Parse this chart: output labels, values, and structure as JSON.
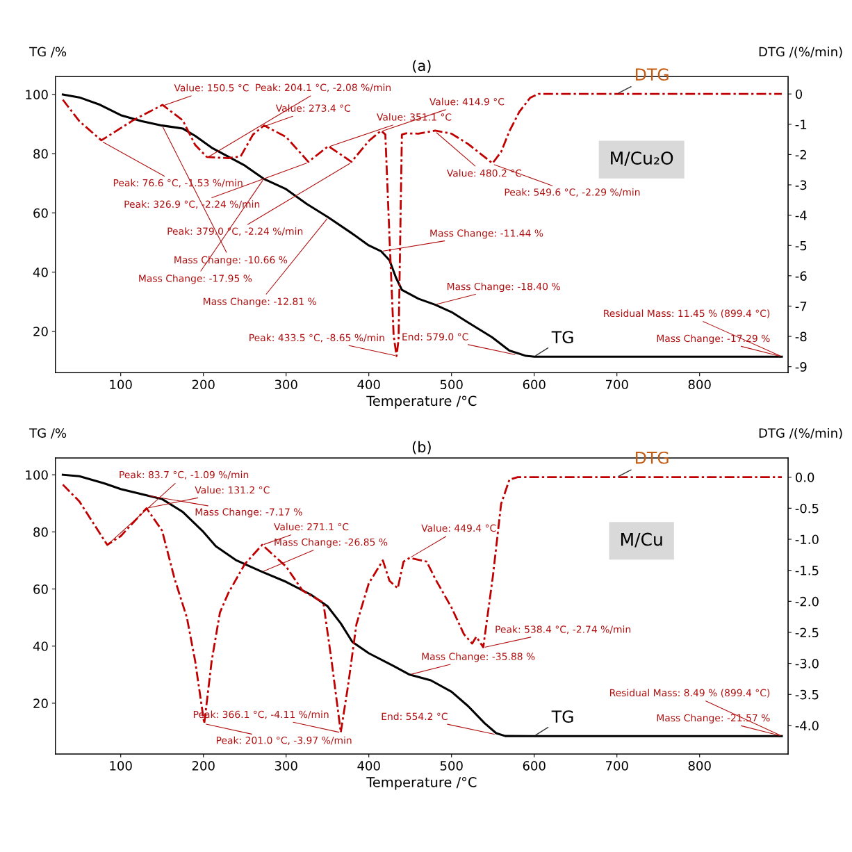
{
  "chart_data": [
    {
      "type": "line",
      "title": "(a)",
      "xlabel": "Temperature /°C",
      "ylabel": "TG /%",
      "y2label": "DTG /(%/min)",
      "xlim": [
        21,
        907
      ],
      "xticks": [
        100,
        200,
        300,
        400,
        500,
        600,
        700,
        800
      ],
      "ylim": [
        6,
        106
      ],
      "yticks": [
        20,
        40,
        60,
        80,
        100
      ],
      "y2lim": [
        -9.2,
        0.57
      ],
      "y2ticks": [
        0,
        -1,
        -2,
        -3,
        -4,
        -5,
        -6,
        -7,
        -8,
        -9
      ],
      "line_style": "solid",
      "grid": false,
      "legend": false,
      "series": [
        {
          "name": "TG",
          "color": "#000000",
          "x": [
            30,
            50,
            75,
            100,
            125,
            150,
            175,
            190,
            210,
            230,
            250,
            273,
            300,
            325,
            351,
            380,
            400,
            415,
            425,
            433,
            440,
            460,
            480,
            500,
            520,
            549,
            570,
            590,
            600,
            700,
            899.4
          ],
          "values": [
            100,
            99,
            96.5,
            93,
            91,
            89.5,
            88.5,
            86,
            82,
            79,
            76,
            71.5,
            68,
            63,
            58.5,
            53,
            49,
            47,
            44,
            38,
            34,
            31,
            29,
            26.5,
            23,
            18,
            13.5,
            11.7,
            11.45,
            11.45,
            11.45
          ]
        },
        {
          "name": "DTG",
          "color": "#c00000",
          "axis": "y2",
          "line_style": "dashdot",
          "x": [
            30,
            50,
            76.6,
            115,
            150.5,
            175,
            190,
            204.1,
            230,
            245,
            260,
            273.4,
            300,
            326.9,
            351.1,
            379,
            400,
            414.9,
            420,
            425,
            430,
            433.5,
            436,
            438,
            440,
            445,
            460,
            480.2,
            500,
            520,
            540,
            549.6,
            560,
            570,
            582,
            595,
            605,
            700,
            800,
            899.4
          ],
          "values": [
            -0.19,
            -0.9,
            -1.53,
            -0.87,
            -0.36,
            -0.87,
            -1.68,
            -2.08,
            -2.12,
            -2.06,
            -1.34,
            -1.04,
            -1.42,
            -2.24,
            -1.72,
            -2.24,
            -1.55,
            -1.21,
            -1.34,
            -4.73,
            -7.96,
            -8.65,
            -8.1,
            -4.73,
            -1.34,
            -1.3,
            -1.31,
            -1.21,
            -1.31,
            -1.65,
            -2.08,
            -2.29,
            -1.91,
            -1.23,
            -0.59,
            -0.13,
            0,
            0,
            0,
            0
          ]
        }
      ],
      "annotations": [
        {
          "text": "Value: 150.5 °C",
          "x": 150.5,
          "y": 96.1
        },
        {
          "text": "Peak: 76.6 °C, -1.53 %/min",
          "x": 76.6,
          "y": 84.2
        },
        {
          "text": "Value: 273.4 °C",
          "x": 273.4,
          "y": 89.2
        },
        {
          "text": "Peak: 204.1 °C, -2.08 %/min",
          "x": 204.1,
          "y": 78.6
        },
        {
          "text": "Value: 351.1 °C",
          "x": 351.1,
          "y": 82.3
        },
        {
          "text": "Peak: 326.9 °C, -2.24 %/min",
          "x": 326.9,
          "y": 77.0
        },
        {
          "text": "Value: 414.9 °C",
          "x": 414.9,
          "y": 87.5
        },
        {
          "text": "Peak: 379.0 °C, -2.24 %/min",
          "x": 379.0,
          "y": 77.0
        },
        {
          "text": "Value: 480.2 °C",
          "x": 480.2,
          "y": 87.5
        },
        {
          "text": "Peak: 433.5 °C, -8.65 %/min",
          "x": 433.5,
          "y": 11.7
        },
        {
          "text": "Mass Change: -10.66 %",
          "x": 150,
          "y": 89.5
        },
        {
          "text": "Peak: 549.6 °C, -2.29 %/min",
          "x": 549.6,
          "y": 76.5
        },
        {
          "text": "Mass Change: -17.95 %",
          "x": 273,
          "y": 71.5
        },
        {
          "text": "Mass Change: -12.81 %",
          "x": 351,
          "y": 58.5
        },
        {
          "text": "Mass Change: -11.44 %",
          "x": 415,
          "y": 47
        },
        {
          "text": "Mass Change: -18.40 %",
          "x": 480,
          "y": 29
        },
        {
          "text": "Mass Change: -17.29 %",
          "x": 899.4,
          "y": 11.45
        },
        {
          "text": "End: 579.0 °C",
          "x": 579,
          "y": 12
        },
        {
          "text": "Residual Mass: 11.45 % (899.4 °C)",
          "x": 899.4,
          "y": 11.45
        },
        "M/Cu₂O"
      ]
    },
    {
      "type": "line",
      "title": "(b)",
      "xlabel": "Temperature /°C",
      "ylabel": "TG /%",
      "y2label": "DTG /(%/min)",
      "xlim": [
        21,
        907
      ],
      "xticks": [
        100,
        200,
        300,
        400,
        500,
        600,
        700,
        800
      ],
      "ylim": [
        2.2,
        105.9
      ],
      "yticks": [
        20,
        40,
        60,
        80,
        100
      ],
      "y2lim": [
        -4.46,
        0.31
      ],
      "y2ticks": [
        {
          "value": 0,
          "label": "0.0"
        },
        -0.5,
        {
          "value": -1,
          "label": "-1.0"
        },
        -1.5,
        {
          "value": -2,
          "label": "-2.0"
        },
        -2.5,
        {
          "value": -3,
          "label": "-3.0"
        },
        -3.5,
        {
          "value": -4,
          "label": "-4.0"
        }
      ],
      "line_style": "solid",
      "grid": false,
      "legend": false,
      "series": [
        {
          "name": "TG",
          "color": "#000000",
          "x": [
            30,
            50,
            80,
            100,
            131.2,
            150,
            175,
            200,
            215,
            240,
            271.1,
            300,
            330,
            350,
            366,
            380,
            400,
            430,
            449.4,
            475,
            500,
            520,
            540,
            554,
            565,
            600,
            899.4
          ],
          "values": [
            100,
            99.5,
            97,
            95,
            92.8,
            91.5,
            87,
            80,
            75,
            70,
            66,
            62.5,
            58,
            54,
            48,
            41.5,
            37.5,
            33,
            30,
            28,
            24,
            19,
            13,
            9.5,
            8.5,
            8.49,
            8.49
          ]
        },
        {
          "name": "DTG",
          "color": "#c00000",
          "axis": "y2",
          "line_style": "dashdot",
          "x": [
            30,
            50,
            83.7,
            100,
            131.2,
            150,
            165,
            180,
            190,
            201.0,
            210,
            220,
            230,
            250,
            271.1,
            300,
            320,
            345,
            355,
            366.1,
            375,
            385,
            400,
            417,
            425,
            435,
            442,
            449.4,
            470,
            480,
            500,
            515,
            525,
            530,
            538.4,
            550,
            560,
            570,
            580,
            700,
            800,
            899.4
          ],
          "values": [
            -0.12,
            -0.39,
            -1.09,
            -0.95,
            -0.5,
            -0.86,
            -1.63,
            -2.26,
            -2.96,
            -3.97,
            -2.96,
            -2.18,
            -1.87,
            -1.4,
            -1.09,
            -1.44,
            -1.83,
            -2.02,
            -2.96,
            -4.11,
            -3.35,
            -2.37,
            -1.71,
            -1.34,
            -1.67,
            -1.79,
            -1.36,
            -1.3,
            -1.36,
            -1.63,
            -2.1,
            -2.53,
            -2.68,
            -2.57,
            -2.74,
            -1.6,
            -0.43,
            -0.04,
            0,
            0,
            0,
            0
          ]
        }
      ],
      "annotations": [
        {
          "text": "Value: 131.2 °C",
          "x": 131.2,
          "y": 88.3
        },
        {
          "text": "Peak: 83.7 °C, -1.09 %/min",
          "x": 83.7,
          "y": 75.4
        },
        {
          "text": "Value: 271.1 °C",
          "x": 271.1,
          "y": 75.4
        },
        {
          "text": "Peak: 201.0 °C, -3.97 %/min",
          "x": 201.0,
          "y": 12.8
        },
        {
          "text": "Value: 449.4 °C",
          "x": 449.4,
          "y": 70.9
        },
        {
          "text": "Peak: 366.1 °C, -4.11 %/min",
          "x": 366.1,
          "y": 9.7
        },
        {
          "text": "Mass Change: -7.17 %",
          "x": 131.2,
          "y": 92.8
        },
        {
          "text": "Peak: 538.4 °C, -2.74 %/min",
          "x": 538.4,
          "y": 39.5
        },
        {
          "text": "Mass Change: -26.85 %",
          "x": 271.1,
          "y": 66
        },
        {
          "text": "Mass Change: -35.88 %",
          "x": 449.4,
          "y": 30
        },
        {
          "text": "Mass Change: -21.57 %",
          "x": 899.4,
          "y": 8.49
        },
        {
          "text": "End: 554.2 °C",
          "x": 554,
          "y": 9
        },
        {
          "text": "Residual Mass: 8.49 % (899.4 °C)",
          "x": 899.4,
          "y": 8.49
        },
        "M/Cu"
      ]
    }
  ]
}
